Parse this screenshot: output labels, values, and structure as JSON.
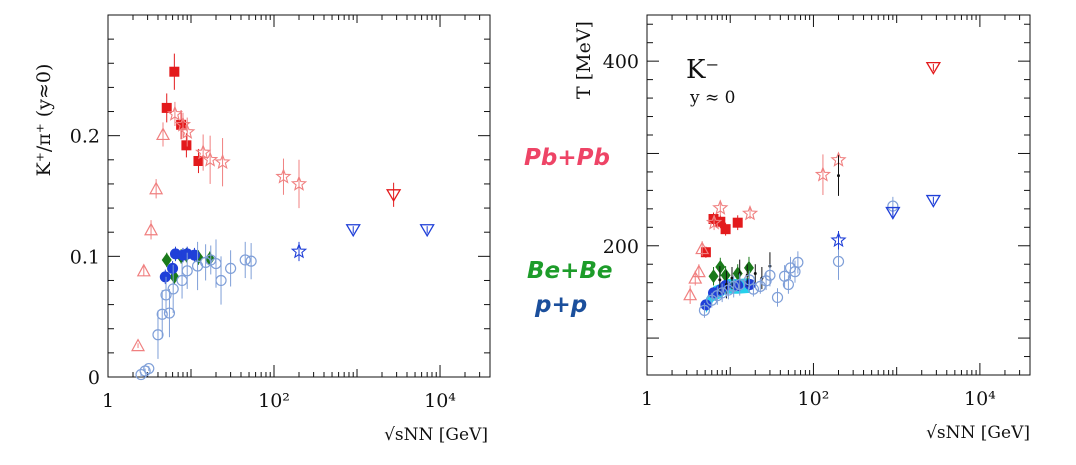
{
  "colors": {
    "pbpb": "#e31a1c",
    "pbpb_light": "#f08080",
    "bebe": "#1a7a1a",
    "pp": "#1f3fd8",
    "pp_light": "#7f9fd8",
    "cyan": "#00c8e8",
    "black": "#111111",
    "label_pb": "#ee4466",
    "label_be": "#1d9c2a",
    "label_pp": "#1b4f9c"
  },
  "side_labels": {
    "pbpb": "Pb+Pb",
    "bebe": "Be+Be",
    "pp": "p+p"
  },
  "chart_data": [
    {
      "type": "scatter",
      "id": "left",
      "title": "",
      "ylabel": "K⁺/π⁺ (y≈0)",
      "xlabel": "√sNN [GeV]",
      "xscale": "log",
      "xlim": [
        1,
        40000
      ],
      "ylim": [
        0,
        0.3
      ],
      "xticks": [
        {
          "v": 1,
          "label": "1"
        },
        {
          "v": 100,
          "label": "10²"
        },
        {
          "v": 10000,
          "label": "10⁴"
        }
      ],
      "yticks": [
        {
          "v": 0,
          "label": "0"
        },
        {
          "v": 0.1,
          "label": "0.1"
        },
        {
          "v": 0.2,
          "label": "0.2"
        }
      ],
      "series": [
        {
          "name": "Pb+Pb NA61 (filled squares)",
          "marker": "square-filled",
          "color": "pbpb",
          "points": [
            [
              5.1,
              0.223,
              0.012
            ],
            [
              6.3,
              0.253,
              0.015
            ],
            [
              7.6,
              0.209,
              0.012
            ],
            [
              8.8,
              0.192,
              0.01
            ],
            [
              12.3,
              0.179,
              0.01
            ]
          ]
        },
        {
          "name": "A+A open triangles",
          "marker": "triangle-open",
          "color": "pbpb_light",
          "points": [
            [
              2.3,
              0.026,
              0.002
            ],
            [
              2.7,
              0.088,
              0.004
            ],
            [
              3.3,
              0.122,
              0.008
            ],
            [
              3.8,
              0.156,
              0.008
            ],
            [
              4.6,
              0.201,
              0.01
            ]
          ]
        },
        {
          "name": "A+A open stars",
          "marker": "star-open",
          "color": "pbpb_light",
          "points": [
            [
              6.4,
              0.218,
              0.01
            ],
            [
              8.0,
              0.209,
              0.01
            ],
            [
              9.0,
              0.203,
              0.012
            ],
            [
              14,
              0.186,
              0.015
            ],
            [
              17,
              0.18,
              0.02
            ],
            [
              24,
              0.178,
              0.02
            ],
            [
              130,
              0.166,
              0.015
            ],
            [
              200,
              0.16,
              0.02
            ]
          ]
        },
        {
          "name": "A+A open down-triangles",
          "marker": "downtriangle-open",
          "color": "pbpb",
          "points": [
            [
              2760,
              0.151,
              0.01
            ]
          ]
        },
        {
          "name": "Be+Be filled diamonds",
          "marker": "diamond-filled",
          "color": "bebe",
          "points": [
            [
              5.1,
              0.097,
              0.006
            ],
            [
              6.3,
              0.083,
              0.006
            ],
            [
              7.6,
              0.1,
              0.006
            ],
            [
              8.8,
              0.101,
              0.006
            ],
            [
              12.3,
              0.099,
              0.006
            ],
            [
              16.8,
              0.098,
              0.006
            ]
          ]
        },
        {
          "name": "p+p filled circles",
          "marker": "circle-filled",
          "color": "pp",
          "points": [
            [
              4.9,
              0.083,
              0.006
            ],
            [
              6.0,
              0.09,
              0.006
            ],
            [
              6.5,
              0.102,
              0.006
            ],
            [
              8.0,
              0.101,
              0.006
            ],
            [
              9.0,
              0.102,
              0.006
            ],
            [
              11,
              0.101,
              0.006
            ]
          ]
        },
        {
          "name": "p+p open circles",
          "marker": "circle-open",
          "color": "pp_light",
          "points": [
            [
              2.5,
              0.002,
              0.002
            ],
            [
              2.8,
              0.005,
              0.002
            ],
            [
              3.1,
              0.007,
              0.002
            ],
            [
              4.0,
              0.035,
              0.02
            ],
            [
              4.5,
              0.052,
              0.02
            ],
            [
              5.0,
              0.068,
              0.015
            ],
            [
              5.5,
              0.053,
              0.02
            ],
            [
              6.1,
              0.073,
              0.02
            ],
            [
              7.8,
              0.08,
              0.015
            ],
            [
              9,
              0.088,
              0.015
            ],
            [
              12,
              0.092,
              0.02
            ],
            [
              15,
              0.095,
              0.015
            ],
            [
              17.3,
              0.097,
              0.012
            ],
            [
              20,
              0.094,
              0.02
            ],
            [
              23,
              0.08,
              0.02
            ],
            [
              30,
              0.09,
              0.015
            ],
            [
              45,
              0.097,
              0.015
            ],
            [
              53,
              0.096,
              0.015
            ]
          ]
        },
        {
          "name": "p+p open down-triangles",
          "marker": "downtriangle-open",
          "color": "pp",
          "points": [
            [
              900,
              0.122,
              0.003
            ],
            [
              7000,
              0.122,
              0.003
            ]
          ]
        },
        {
          "name": "p+p open star",
          "marker": "star-open",
          "color": "pp",
          "points": [
            [
              200,
              0.104,
              0.008
            ]
          ]
        }
      ]
    },
    {
      "type": "scatter",
      "id": "right",
      "title": "K⁻",
      "subtitle": "y ≈ 0",
      "ylabel": "T [MeV]",
      "xlabel": "√sNN [GeV]",
      "xscale": "log",
      "xlim": [
        1,
        40000
      ],
      "ylim": [
        60,
        450
      ],
      "xticks": [
        {
          "v": 1,
          "label": "1"
        },
        {
          "v": 100,
          "label": "10²"
        },
        {
          "v": 10000,
          "label": "10⁴"
        }
      ],
      "yticks": [
        {
          "v": 200,
          "label": "200"
        },
        {
          "v": 400,
          "label": "400"
        }
      ],
      "series": [
        {
          "name": "Pb+Pb NA61 (filled squares)",
          "marker": "square-filled",
          "color": "pbpb",
          "points": [
            [
              5.1,
              193,
              6
            ],
            [
              6.3,
              229,
              7
            ],
            [
              7.6,
              226,
              7
            ],
            [
              8.8,
              218,
              7
            ],
            [
              12.3,
              225,
              8
            ]
          ]
        },
        {
          "name": "A+A open triangles",
          "marker": "triangle-open",
          "color": "pbpb_light",
          "points": [
            [
              3.3,
              147,
              10
            ],
            [
              3.8,
              165,
              8
            ],
            [
              4.2,
              172,
              8
            ],
            [
              4.6,
              197,
              8
            ]
          ]
        },
        {
          "name": "A+A open stars",
          "marker": "star-open",
          "color": "pbpb_light",
          "points": [
            [
              6.4,
              225,
              8
            ],
            [
              7.6,
              241,
              8
            ],
            [
              17.3,
              235,
              6
            ],
            [
              130,
              277,
              22
            ],
            [
              200,
              293,
              8
            ]
          ]
        },
        {
          "name": "A+A open down-triangle",
          "marker": "downtriangle-open",
          "color": "pbpb",
          "points": [
            [
              2760,
              393,
              4
            ]
          ]
        },
        {
          "name": "Be+Be filled diamonds",
          "marker": "diamond-filled",
          "color": "bebe",
          "points": [
            [
              6.3,
              167,
              10
            ],
            [
              7.6,
              177,
              10
            ],
            [
              8.8,
              168,
              10
            ],
            [
              12.3,
              170,
              10
            ],
            [
              16.8,
              176,
              12
            ]
          ]
        },
        {
          "name": "p+p filled circles",
          "marker": "circle-filled",
          "color": "pp",
          "points": [
            [
              5.1,
              136,
              6
            ],
            [
              6.3,
              149,
              6
            ],
            [
              7.6,
              152,
              6
            ],
            [
              8.8,
              157,
              6
            ],
            [
              12.3,
              157,
              6
            ],
            [
              17.3,
              158,
              6
            ]
          ]
        },
        {
          "name": "p+p black markers",
          "marker": "dot",
          "color": "black",
          "points": [
            [
              7.5,
              163,
              15
            ],
            [
              9,
              158,
              15
            ],
            [
              10.5,
              165,
              12
            ],
            [
              13,
              170,
              15
            ],
            [
              16,
              168,
              12
            ],
            [
              20,
              170,
              10
            ],
            [
              24,
              165,
              12
            ],
            [
              30,
              178,
              15
            ],
            [
              200,
              276,
              22
            ]
          ]
        },
        {
          "name": "p+p open circles",
          "marker": "circle-open",
          "color": "pp_light",
          "points": [
            [
              4.9,
              130,
              8
            ],
            [
              6.0,
              141,
              8
            ],
            [
              7.0,
              146,
              10
            ],
            [
              8.0,
              149,
              10
            ],
            [
              9.5,
              152,
              10
            ],
            [
              11,
              156,
              12
            ],
            [
              13,
              158,
              12
            ],
            [
              17,
              163,
              10
            ],
            [
              19,
              153,
              8
            ],
            [
              23,
              156,
              8
            ],
            [
              27,
              162,
              10
            ],
            [
              30,
              168,
              12
            ],
            [
              37,
              144,
              10
            ],
            [
              45,
              167,
              12
            ],
            [
              50,
              158,
              10
            ],
            [
              53,
              176,
              12
            ],
            [
              60,
              172,
              12
            ],
            [
              65,
              182,
              12
            ],
            [
              200,
              183,
              20
            ],
            [
              900,
              243,
              10
            ]
          ]
        },
        {
          "name": "p+p open down-triangles",
          "marker": "downtriangle-open",
          "color": "pp",
          "points": [
            [
              900,
              236,
              5
            ],
            [
              2760,
              249,
              4
            ]
          ]
        },
        {
          "name": "p+p open star",
          "marker": "star-open",
          "color": "pp",
          "points": [
            [
              200,
              206,
              10
            ]
          ]
        }
      ]
    }
  ]
}
